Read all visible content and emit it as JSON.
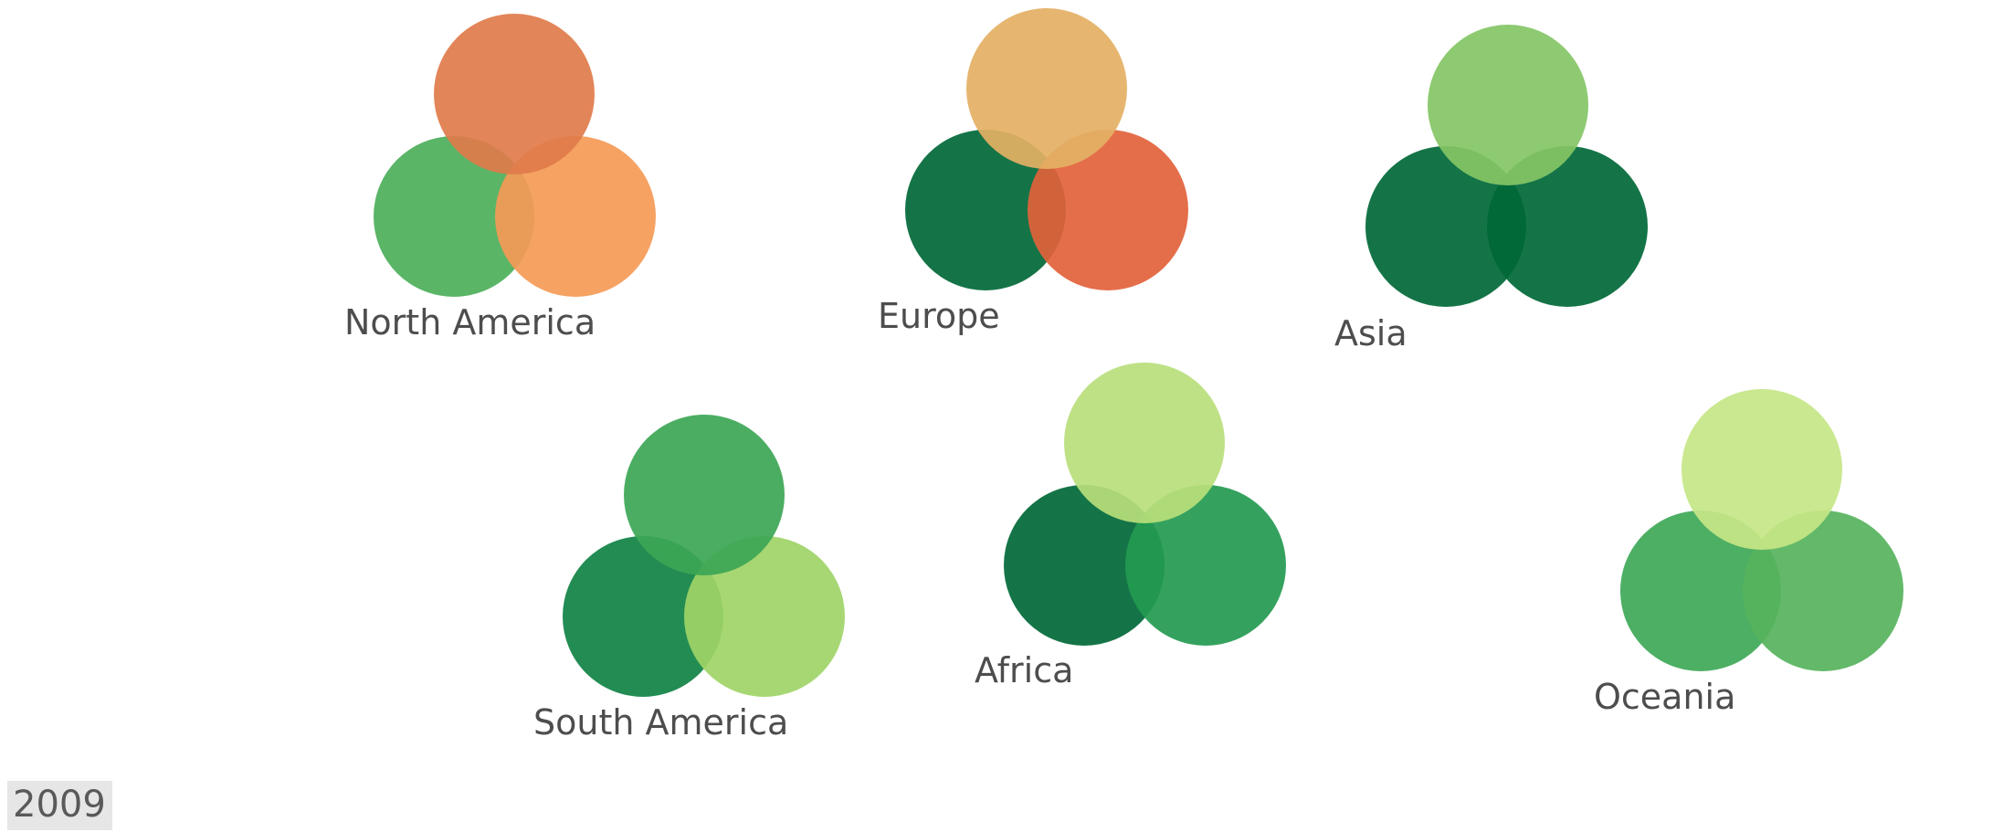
{
  "year": "2009",
  "regions": [
    {
      "label": "North America",
      "colors": [
        "#e07b4a",
        "#4caf5a",
        "#f49a56"
      ]
    },
    {
      "label": "Europe",
      "colors": [
        "#e4b064",
        "#006837",
        "#e2623b"
      ]
    },
    {
      "label": "Asia",
      "colors": [
        "#84c665",
        "#006837",
        "#006837"
      ]
    },
    {
      "label": "South America",
      "colors": [
        "#3ca655",
        "#0f8244",
        "#a0d467"
      ]
    },
    {
      "label": "Africa",
      "colors": [
        "#b9de7b",
        "#006837",
        "#239a50"
      ]
    },
    {
      "label": "Oceania",
      "colors": [
        "#c6e686",
        "#3ea857",
        "#56b35c"
      ]
    }
  ]
}
